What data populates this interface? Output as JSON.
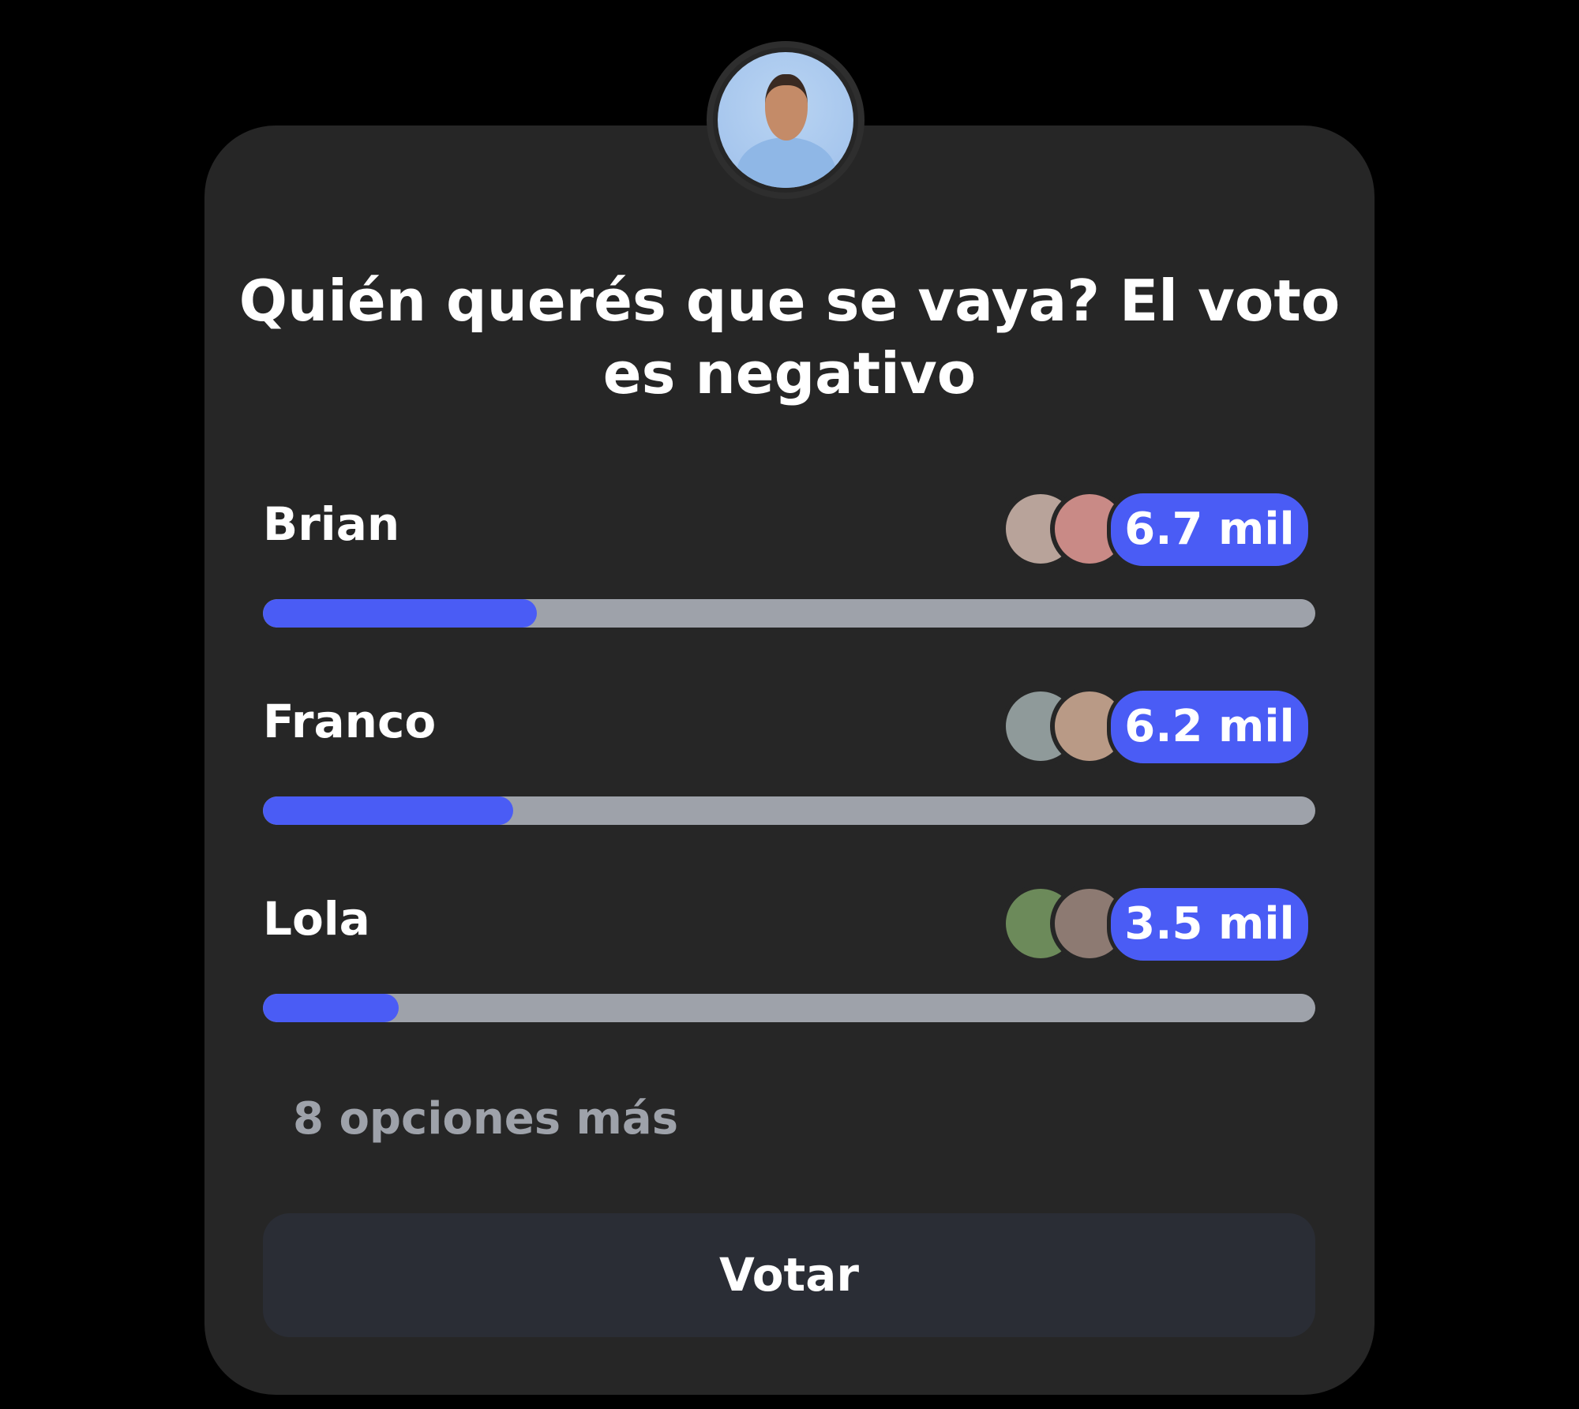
{
  "poll": {
    "question": "Quién querés que se vaya? El voto es negativo",
    "accent_color": "#4a5cf5",
    "options": [
      {
        "label": "Brian",
        "votes": "6.7 mil",
        "fraction": 0.26
      },
      {
        "label": "Franco",
        "votes": "6.2 mil",
        "fraction": 0.238
      },
      {
        "label": "Lola",
        "votes": "3.5 mil",
        "fraction": 0.129
      }
    ],
    "more_options": "8 opciones más",
    "vote_button": "Votar"
  }
}
